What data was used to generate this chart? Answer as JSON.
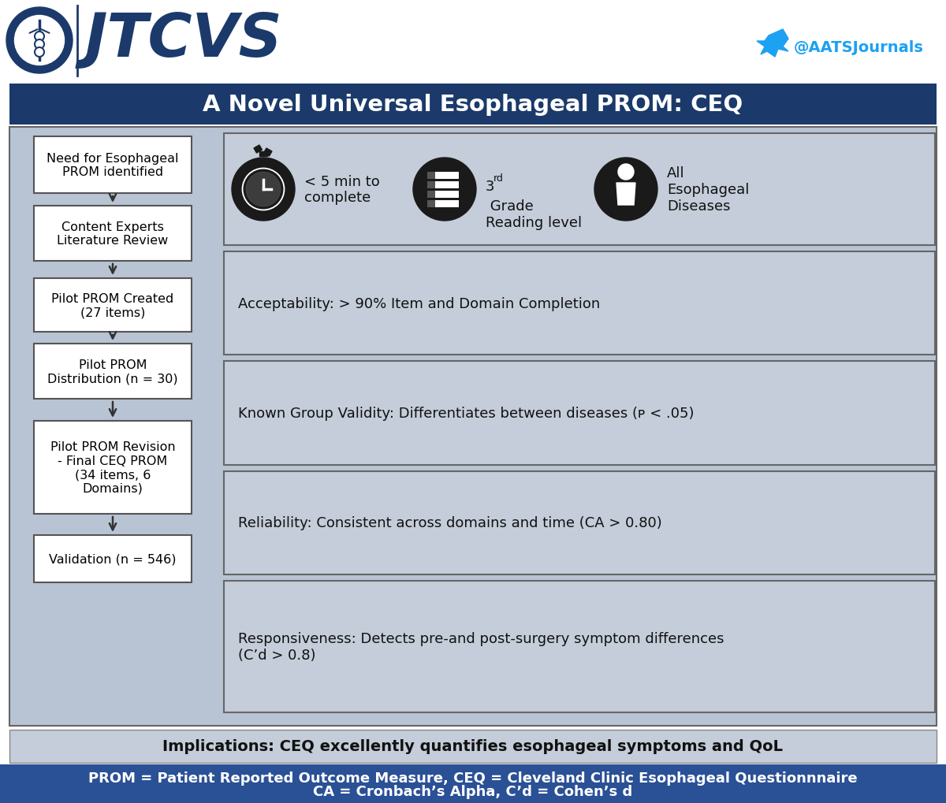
{
  "title": "A Novel Universal Esophageal PROM: CEQ",
  "title_bg": "#1b3a6b",
  "title_text_color": "#ffffff",
  "twitter_text": "@AATSJournals",
  "twitter_color": "#1da1f2",
  "outer_bg": "#b8c4d4",
  "panel_bg": "#c4cdd9",
  "box_bg": "#ffffff",
  "box_border": "#555555",
  "implications_bg": "#c4cdd9",
  "implications_text": "Implications: CEQ excellently quantifies esophageal symptoms and QoL",
  "footer_bg": "#2a5096",
  "footer_text_line1": "PROM = Patient Reported Outcome Measure, CEQ = Cleveland Clinic Esophageal Questionnnaire",
  "footer_text_line2": "CA = Cronbach’s Alpha, C’d = Cohen’s d",
  "flow_boxes": [
    "Need for Esophageal\nPROM identified",
    "Content Experts\nLiterature Review",
    "Pilot PROM Created\n(27 items)",
    "Pilot PROM\nDistribution (n = 30)",
    "Pilot PROM Revision\n- Final CEQ PROM\n(34 items, 6\nDomains)",
    "Validation (n = 546)"
  ],
  "right_top_texts": [
    "< 5 min to\ncomplete",
    "3ʳᵈ Grade\nReading level",
    "All\nEsophageal\nDiseases"
  ],
  "right_bottom_boxes": [
    "Acceptability: > 90% Item and Domain Completion",
    "Known Group Validity: Differentiates between diseases (ᴘ < .05)",
    "Reliability: Consistent across domains and time (CA > 0.80)",
    "Responsiveness: Detects pre-and post-surgery symptom differences\n(C’d > 0.8)"
  ],
  "right_bottom_boxes_italic_p": [
    false,
    true,
    false,
    false
  ]
}
